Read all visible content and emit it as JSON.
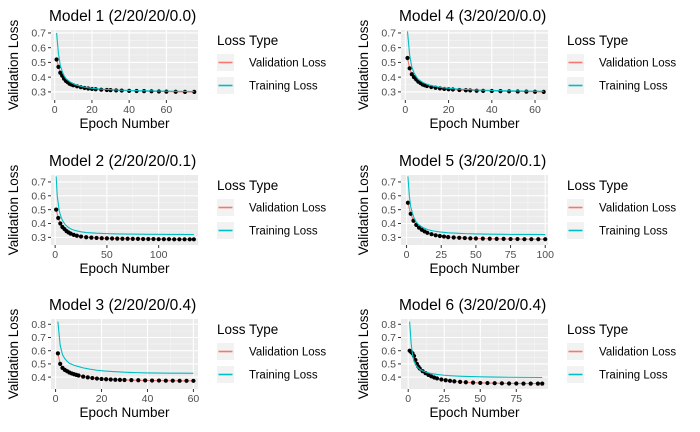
{
  "chart_data": [
    {
      "type": "line",
      "title": "Model 1 (2/20/20/0.0)",
      "xlabel": "Epoch Number",
      "ylabel": "Validation Loss",
      "xlim": [
        -2,
        77
      ],
      "ylim": [
        0.245,
        0.72
      ],
      "xticks": [
        0,
        20,
        40,
        60
      ],
      "yticks": [
        0.3,
        0.4,
        0.5,
        0.6,
        0.7
      ],
      "legend": {
        "title": "Loss Type",
        "position": "right",
        "entries": [
          "Validation Loss",
          "Training Loss"
        ]
      },
      "series": [
        {
          "name": "Validation Loss",
          "color": "#F8766D",
          "style": "line+points",
          "x": [
            1,
            2,
            3,
            4,
            5,
            6,
            7,
            8,
            9,
            10,
            12,
            14,
            16,
            18,
            20,
            22,
            25,
            28,
            30,
            33,
            36,
            40,
            44,
            48,
            52,
            56,
            60,
            65,
            70,
            75
          ],
          "y": [
            0.52,
            0.47,
            0.43,
            0.41,
            0.39,
            0.375,
            0.365,
            0.355,
            0.35,
            0.345,
            0.338,
            0.332,
            0.327,
            0.323,
            0.32,
            0.318,
            0.315,
            0.313,
            0.312,
            0.31,
            0.309,
            0.307,
            0.306,
            0.305,
            0.304,
            0.303,
            0.302,
            0.301,
            0.3,
            0.3
          ]
        },
        {
          "name": "Training Loss",
          "color": "#00BFC4",
          "style": "line",
          "x": [
            1,
            2,
            3,
            4,
            5,
            6,
            8,
            10,
            12,
            15,
            18,
            22,
            26,
            30,
            35,
            40,
            45,
            50,
            55,
            60,
            65,
            70,
            75
          ],
          "y": [
            0.7,
            0.56,
            0.48,
            0.44,
            0.41,
            0.39,
            0.37,
            0.355,
            0.345,
            0.335,
            0.328,
            0.322,
            0.318,
            0.315,
            0.312,
            0.31,
            0.308,
            0.307,
            0.306,
            0.305,
            0.304,
            0.303,
            0.302
          ]
        }
      ]
    },
    {
      "type": "line",
      "title": "Model 4 (3/20/20/0.0)",
      "xlabel": "Epoch Number",
      "ylabel": "Validation Loss",
      "xlim": [
        -2,
        66
      ],
      "ylim": [
        0.245,
        0.72
      ],
      "xticks": [
        0,
        20,
        40,
        60
      ],
      "yticks": [
        0.3,
        0.4,
        0.5,
        0.6,
        0.7
      ],
      "legend": {
        "title": "Loss Type",
        "position": "right",
        "entries": [
          "Validation Loss",
          "Training Loss"
        ]
      },
      "series": [
        {
          "name": "Validation Loss",
          "color": "#F8766D",
          "style": "line+points",
          "x": [
            1,
            2,
            3,
            4,
            5,
            6,
            7,
            8,
            9,
            10,
            12,
            14,
            16,
            18,
            20,
            22,
            25,
            28,
            30,
            33,
            36,
            40,
            44,
            48,
            52,
            56,
            60,
            64
          ],
          "y": [
            0.53,
            0.46,
            0.42,
            0.4,
            0.385,
            0.37,
            0.36,
            0.35,
            0.345,
            0.34,
            0.333,
            0.328,
            0.324,
            0.32,
            0.318,
            0.316,
            0.313,
            0.311,
            0.31,
            0.308,
            0.307,
            0.306,
            0.305,
            0.304,
            0.303,
            0.302,
            0.301,
            0.3
          ]
        },
        {
          "name": "Training Loss",
          "color": "#00BFC4",
          "style": "line",
          "x": [
            1,
            2,
            3,
            4,
            5,
            6,
            8,
            10,
            12,
            15,
            18,
            22,
            26,
            30,
            35,
            40,
            45,
            50,
            55,
            60,
            64
          ],
          "y": [
            0.71,
            0.55,
            0.47,
            0.43,
            0.405,
            0.385,
            0.365,
            0.352,
            0.343,
            0.334,
            0.328,
            0.322,
            0.318,
            0.315,
            0.312,
            0.31,
            0.308,
            0.307,
            0.306,
            0.305,
            0.304
          ]
        }
      ]
    },
    {
      "type": "line",
      "title": "Model 2 (2/20/20/0.1)",
      "xlabel": "Epoch Number",
      "ylabel": "Validation Loss",
      "xlim": [
        -4,
        138
      ],
      "ylim": [
        0.245,
        0.75
      ],
      "xticks": [
        0,
        50,
        100
      ],
      "yticks": [
        0.3,
        0.4,
        0.5,
        0.6,
        0.7
      ],
      "legend": {
        "title": "Loss Type",
        "position": "right",
        "entries": [
          "Validation Loss",
          "Training Loss"
        ]
      },
      "series": [
        {
          "name": "Validation Loss",
          "color": "#F8766D",
          "style": "line+points",
          "x": [
            1,
            3,
            5,
            7,
            9,
            11,
            13,
            15,
            18,
            21,
            25,
            30,
            35,
            40,
            45,
            50,
            55,
            60,
            65,
            70,
            75,
            80,
            85,
            90,
            95,
            100,
            105,
            110,
            115,
            120,
            125,
            130,
            134
          ],
          "y": [
            0.5,
            0.44,
            0.4,
            0.375,
            0.36,
            0.345,
            0.335,
            0.327,
            0.318,
            0.312,
            0.306,
            0.301,
            0.298,
            0.296,
            0.294,
            0.293,
            0.292,
            0.291,
            0.29,
            0.29,
            0.289,
            0.289,
            0.288,
            0.288,
            0.288,
            0.287,
            0.287,
            0.287,
            0.286,
            0.286,
            0.286,
            0.286,
            0.286
          ]
        },
        {
          "name": "Training Loss",
          "color": "#00BFC4",
          "style": "line",
          "x": [
            1,
            2,
            4,
            6,
            8,
            10,
            13,
            16,
            20,
            25,
            30,
            40,
            50,
            60,
            70,
            80,
            90,
            100,
            110,
            120,
            134
          ],
          "y": [
            0.74,
            0.6,
            0.49,
            0.44,
            0.41,
            0.39,
            0.37,
            0.358,
            0.348,
            0.34,
            0.335,
            0.33,
            0.327,
            0.325,
            0.324,
            0.323,
            0.322,
            0.322,
            0.321,
            0.321,
            0.32
          ]
        }
      ]
    },
    {
      "type": "line",
      "title": "Model 5 (3/20/20/0.1)",
      "xlabel": "Epoch Number",
      "ylabel": "Validation Loss",
      "xlim": [
        -4,
        102
      ],
      "ylim": [
        0.245,
        0.75
      ],
      "xticks": [
        0,
        25,
        50,
        75,
        100
      ],
      "yticks": [
        0.3,
        0.4,
        0.5,
        0.6,
        0.7
      ],
      "legend": {
        "title": "Loss Type",
        "position": "right",
        "entries": [
          "Validation Loss",
          "Training Loss"
        ]
      },
      "series": [
        {
          "name": "Validation Loss",
          "color": "#F8766D",
          "style": "line+points",
          "x": [
            1,
            3,
            5,
            7,
            9,
            11,
            13,
            15,
            18,
            21,
            24,
            27,
            30,
            34,
            38,
            42,
            46,
            50,
            55,
            60,
            65,
            70,
            75,
            80,
            85,
            90,
            95,
            100
          ],
          "y": [
            0.55,
            0.47,
            0.42,
            0.39,
            0.37,
            0.355,
            0.343,
            0.333,
            0.323,
            0.315,
            0.31,
            0.306,
            0.302,
            0.299,
            0.297,
            0.295,
            0.293,
            0.292,
            0.291,
            0.29,
            0.289,
            0.289,
            0.288,
            0.288,
            0.287,
            0.287,
            0.287,
            0.287
          ]
        },
        {
          "name": "Training Loss",
          "color": "#00BFC4",
          "style": "line",
          "x": [
            1,
            2,
            3,
            5,
            7,
            9,
            12,
            15,
            19,
            24,
            30,
            36,
            42,
            50,
            60,
            70,
            80,
            90,
            100
          ],
          "y": [
            0.74,
            0.6,
            0.52,
            0.45,
            0.41,
            0.39,
            0.37,
            0.357,
            0.347,
            0.339,
            0.333,
            0.33,
            0.327,
            0.325,
            0.323,
            0.322,
            0.321,
            0.321,
            0.32
          ]
        }
      ]
    },
    {
      "type": "line",
      "title": "Model 3 (2/20/20/0.4)",
      "xlabel": "Epoch Number",
      "ylabel": "Validation Loss",
      "xlim": [
        -2,
        62
      ],
      "ylim": [
        0.31,
        0.84
      ],
      "xticks": [
        0,
        20,
        40,
        60
      ],
      "yticks": [
        0.4,
        0.5,
        0.6,
        0.7,
        0.8
      ],
      "legend": {
        "title": "Loss Type",
        "position": "right",
        "entries": [
          "Validation Loss",
          "Training Loss"
        ]
      },
      "series": [
        {
          "name": "Validation Loss",
          "color": "#F8766D",
          "style": "line+points",
          "x": [
            1,
            2,
            3,
            4,
            5,
            6,
            7,
            8,
            9,
            10,
            12,
            14,
            16,
            18,
            20,
            22,
            24,
            26,
            28,
            30,
            33,
            36,
            39,
            42,
            45,
            48,
            51,
            54,
            57,
            60
          ],
          "y": [
            0.58,
            0.5,
            0.47,
            0.455,
            0.445,
            0.435,
            0.428,
            0.422,
            0.417,
            0.412,
            0.404,
            0.398,
            0.393,
            0.389,
            0.386,
            0.384,
            0.382,
            0.38,
            0.379,
            0.378,
            0.377,
            0.376,
            0.375,
            0.374,
            0.374,
            0.373,
            0.373,
            0.372,
            0.372,
            0.372
          ]
        },
        {
          "name": "Training Loss",
          "color": "#00BFC4",
          "style": "line",
          "x": [
            1,
            2,
            3,
            4,
            5,
            6,
            8,
            10,
            12,
            15,
            18,
            21,
            25,
            30,
            35,
            40,
            45,
            50,
            55,
            60
          ],
          "y": [
            0.82,
            0.64,
            0.57,
            0.54,
            0.52,
            0.505,
            0.49,
            0.48,
            0.47,
            0.46,
            0.452,
            0.447,
            0.442,
            0.437,
            0.434,
            0.432,
            0.431,
            0.43,
            0.43,
            0.429
          ]
        }
      ]
    },
    {
      "type": "line",
      "title": "Model 6 (3/20/20/0.4)",
      "xlabel": "Epoch Number",
      "ylabel": "Validation Loss",
      "xlim": [
        -5,
        97
      ],
      "ylim": [
        0.31,
        0.84
      ],
      "xticks": [
        0,
        25,
        50,
        75
      ],
      "yticks": [
        0.4,
        0.5,
        0.6,
        0.7,
        0.8
      ],
      "legend": {
        "title": "Loss Type",
        "position": "right",
        "entries": [
          "Validation Loss",
          "Training Loss"
        ]
      },
      "series": [
        {
          "name": "Validation Loss",
          "color": "#F8766D",
          "style": "line+points",
          "x": [
            1,
            2,
            3,
            4,
            5,
            6,
            7,
            8,
            10,
            12,
            14,
            16,
            18,
            20,
            23,
            26,
            29,
            32,
            36,
            40,
            45,
            50,
            55,
            60,
            65,
            70,
            75,
            80,
            85,
            90,
            93
          ],
          "y": [
            0.6,
            0.59,
            0.58,
            0.56,
            0.53,
            0.5,
            0.48,
            0.465,
            0.445,
            0.43,
            0.417,
            0.406,
            0.397,
            0.39,
            0.382,
            0.376,
            0.372,
            0.368,
            0.364,
            0.361,
            0.358,
            0.356,
            0.355,
            0.354,
            0.353,
            0.352,
            0.352,
            0.351,
            0.351,
            0.351,
            0.351
          ]
        },
        {
          "name": "Training Loss",
          "color": "#00BFC4",
          "style": "line",
          "x": [
            1,
            2,
            3,
            4,
            6,
            8,
            10,
            13,
            16,
            20,
            25,
            30,
            35,
            40,
            50,
            60,
            70,
            80,
            93
          ],
          "y": [
            0.82,
            0.66,
            0.57,
            0.52,
            0.48,
            0.46,
            0.447,
            0.435,
            0.427,
            0.42,
            0.414,
            0.41,
            0.407,
            0.405,
            0.402,
            0.4,
            0.399,
            0.398,
            0.397
          ]
        }
      ]
    }
  ]
}
